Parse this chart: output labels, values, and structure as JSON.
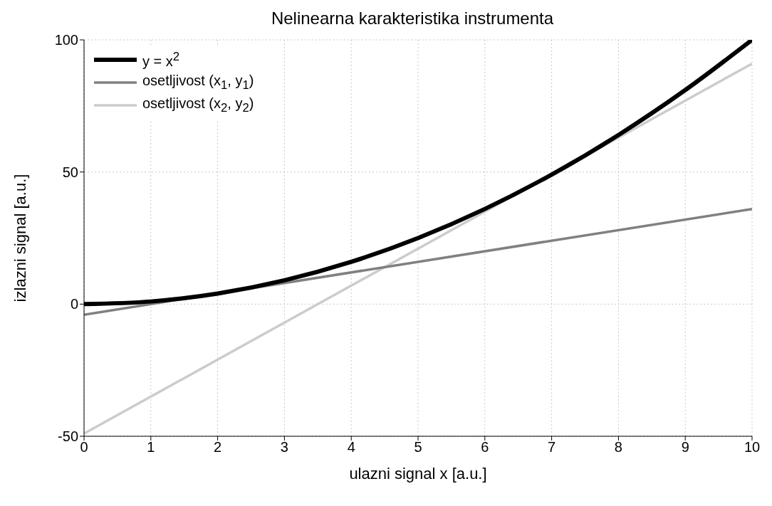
{
  "chart_data": {
    "type": "line",
    "title": "Nelinearna karakteristika instrumenta",
    "xlabel": "ulazni signal x [a.u.]",
    "ylabel": "izlazni signal [a.u.]",
    "xlim": [
      0,
      10
    ],
    "ylim": [
      -50,
      100
    ],
    "xticks": [
      0,
      1,
      2,
      3,
      4,
      5,
      6,
      7,
      8,
      9,
      10
    ],
    "yticks": [
      -50,
      0,
      50,
      100
    ],
    "grid": true,
    "legend": "top left",
    "marker": "none",
    "line_style": "solid",
    "series": [
      {
        "name": "y = x$^{2}$",
        "color": "#000000",
        "x": [
          0,
          1,
          2,
          3,
          4,
          5,
          6,
          7,
          8,
          9,
          10
        ],
        "values": [
          0,
          1,
          4,
          9,
          16,
          25,
          36,
          49,
          64,
          81,
          100
        ]
      },
      {
        "name": "osetljivost (x$_{1}$, y$_{1}$)",
        "color": "#808080",
        "x": [
          0,
          10
        ],
        "values": [
          -4,
          36
        ]
      },
      {
        "name": "osetljivost (x$_{2}$, y$_{2}$)",
        "color": "#cccccc",
        "x": [
          0,
          10
        ],
        "values": [
          -49,
          91
        ]
      }
    ]
  }
}
